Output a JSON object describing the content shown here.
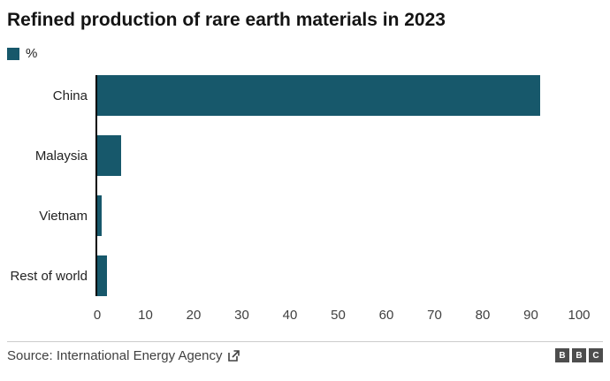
{
  "header": {
    "title": "Refined production of rare earth materials in 2023"
  },
  "legend": {
    "label": "%",
    "swatch_color": "#17586B"
  },
  "chart_data": {
    "type": "bar",
    "orientation": "horizontal",
    "title": "Refined production of rare earth materials in 2023",
    "series_name": "%",
    "categories": [
      "China",
      "Malaysia",
      "Vietnam",
      "Rest of world"
    ],
    "values": [
      92,
      5,
      1,
      2
    ],
    "xlabel": "",
    "ylabel": "",
    "xlim": [
      0,
      100
    ],
    "x_ticks": [
      0,
      10,
      20,
      30,
      40,
      50,
      60,
      70,
      80,
      90,
      100
    ],
    "bar_color": "#17586B",
    "grid": false,
    "legend_position": "top-left"
  },
  "footer": {
    "source_label": "Source: International Energy Agency",
    "logo_letters": [
      "B",
      "B",
      "C"
    ]
  },
  "colors": {
    "accent": "#17586B",
    "axis": "#000000",
    "text": "#222222",
    "muted": "#404040",
    "divider": "#cccccc",
    "logo_bg": "#4d4d4d"
  }
}
